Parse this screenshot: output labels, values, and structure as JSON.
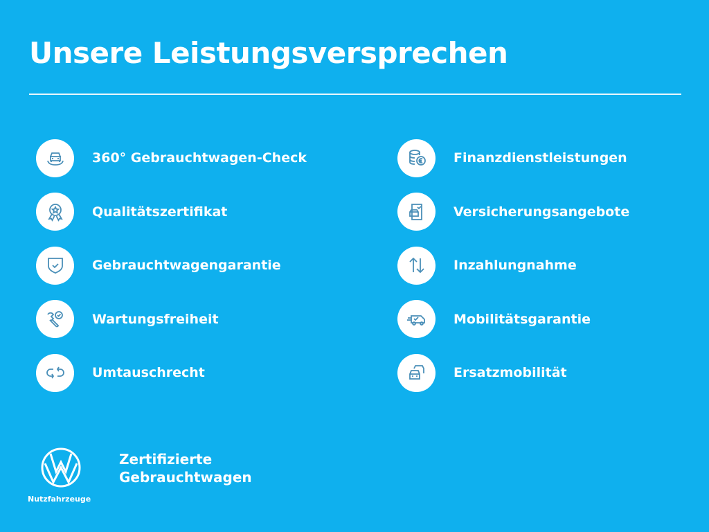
{
  "title": "Unsere Leistungsversprechen",
  "colors": {
    "background": "#0fb0ee",
    "icon_stroke": "#4a8fb8"
  },
  "left_items": [
    {
      "label": "360° Gebrauchtwagen-Check",
      "icon": "car-check-icon"
    },
    {
      "label": "Qualitätszertifikat",
      "icon": "award-badge-icon"
    },
    {
      "label": "Gebrauchtwagengarantie",
      "icon": "shield-check-icon"
    },
    {
      "label": "Wartungsfreiheit",
      "icon": "wrench-check-icon"
    },
    {
      "label": "Umtauschrecht",
      "icon": "exchange-arrows-icon"
    }
  ],
  "right_items": [
    {
      "label": "Finanzdienstleistungen",
      "icon": "coins-euro-icon"
    },
    {
      "label": "Versicherungsangebote",
      "icon": "insurance-document-icon"
    },
    {
      "label": "Inzahlungnahme",
      "icon": "up-down-arrows-icon"
    },
    {
      "label": "Mobilitätsgarantie",
      "icon": "van-speed-icon"
    },
    {
      "label": "Ersatzmobilität",
      "icon": "replacement-car-icon"
    }
  ],
  "footer": {
    "logo_subtitle": "Nutzfahrzeuge",
    "brand_line1": "Zertifizierte",
    "brand_line2": "Gebrauchtwagen"
  }
}
